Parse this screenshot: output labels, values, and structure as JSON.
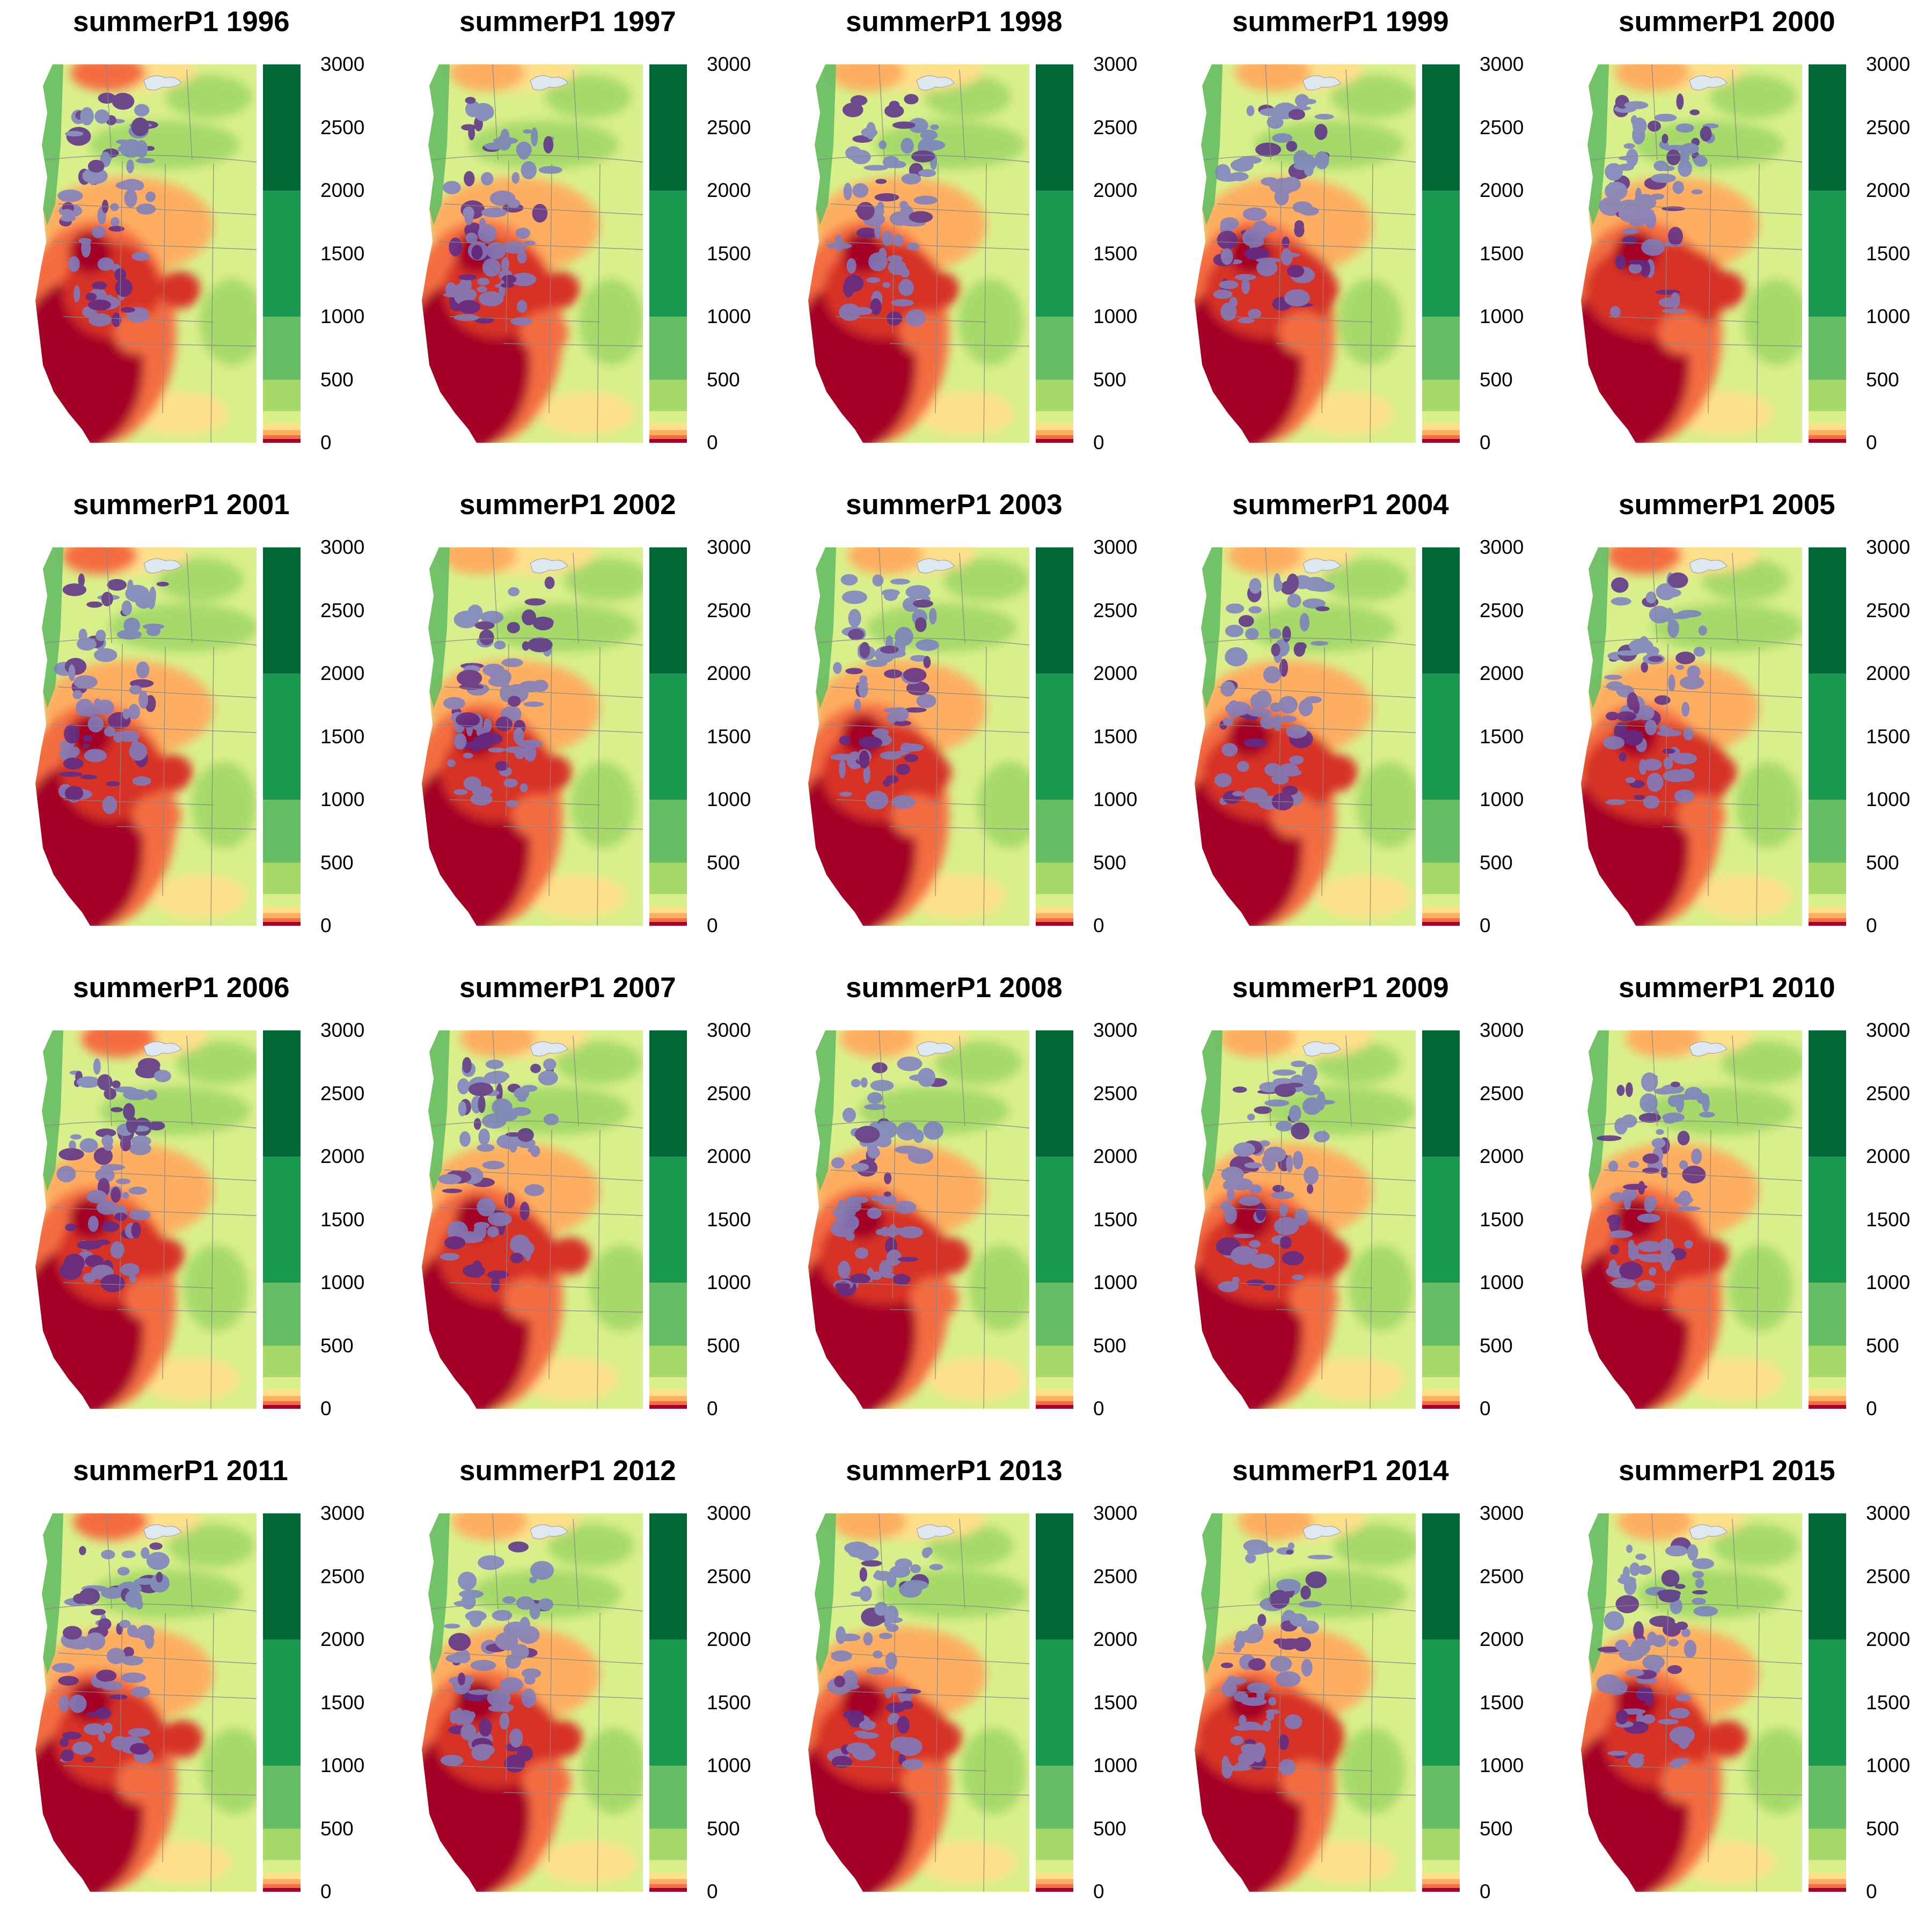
{
  "figure": {
    "panels": [
      {
        "title": "summerP1 1996"
      },
      {
        "title": "summerP1 1997"
      },
      {
        "title": "summerP1 1998"
      },
      {
        "title": "summerP1 1999"
      },
      {
        "title": "summerP1 2000"
      },
      {
        "title": "summerP1 2001"
      },
      {
        "title": "summerP1 2002"
      },
      {
        "title": "summerP1 2003"
      },
      {
        "title": "summerP1 2004"
      },
      {
        "title": "summerP1 2005"
      },
      {
        "title": "summerP1 2006"
      },
      {
        "title": "summerP1 2007"
      },
      {
        "title": "summerP1 2008"
      },
      {
        "title": "summerP1 2009"
      },
      {
        "title": "summerP1 2010"
      },
      {
        "title": "summerP1 2011"
      },
      {
        "title": "summerP1 2012"
      },
      {
        "title": "summerP1 2013"
      },
      {
        "title": "summerP1 2014"
      },
      {
        "title": "summerP1 2015"
      }
    ],
    "legend": {
      "ticks": [
        "3000",
        "2500",
        "2000",
        "1500",
        "1000",
        "500",
        "0"
      ],
      "bins": [
        {
          "from": 2000,
          "to": 3000,
          "color": "#006837"
        },
        {
          "from": 1000,
          "to": 2000,
          "color": "#1a9850"
        },
        {
          "from": 500,
          "to": 1000,
          "color": "#66bd63"
        },
        {
          "from": 250,
          "to": 500,
          "color": "#a6d96a"
        },
        {
          "from": 150,
          "to": 250,
          "color": "#d9ef8b"
        },
        {
          "from": 100,
          "to": 150,
          "color": "#fee08b"
        },
        {
          "from": 60,
          "to": 100,
          "color": "#fdae61"
        },
        {
          "from": 30,
          "to": 60,
          "color": "#f46d43"
        },
        {
          "from": 0,
          "to": 30,
          "color": "#a50026"
        }
      ],
      "range": [
        0,
        3000
      ]
    },
    "overlay_color": "#7b7fc4",
    "deep_overlay_color": "#5a2d8c"
  }
}
